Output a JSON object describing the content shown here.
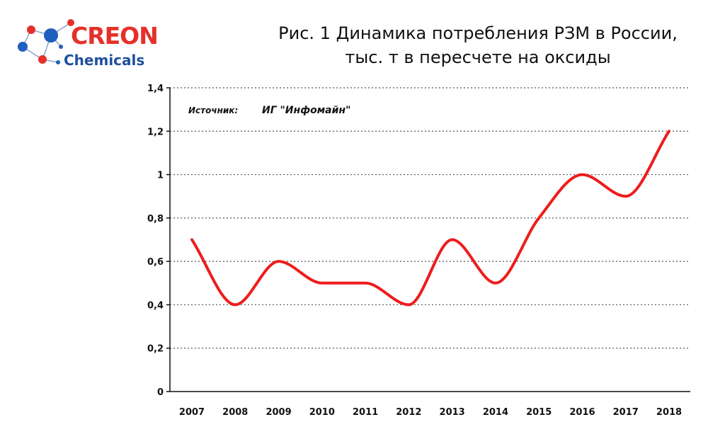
{
  "logo": {
    "word1": "CREON",
    "word2": "Chemicals"
  },
  "title_line1": "Рис. 1  Динамика потребления РЗМ в России,",
  "title_line2": "тыс. т в пересчете на оксиды",
  "source_label": "Источник:",
  "source_value": "ИГ \"Инфомайн\"",
  "colors": {
    "line": "#ee1c1c",
    "logo_red": "#e5302a",
    "logo_blue": "#1e4f9e",
    "grid": "#555555"
  },
  "chart_data": {
    "type": "line",
    "categories": [
      "2007",
      "2008",
      "2009",
      "2010",
      "2011",
      "2012",
      "2013",
      "2014",
      "2015",
      "2016",
      "2017",
      "2018"
    ],
    "series": [
      {
        "values": [
          0.7,
          0.4,
          0.6,
          0.5,
          0.5,
          0.4,
          0.7,
          0.5,
          0.8,
          1.0,
          0.9,
          1.2
        ]
      }
    ],
    "y_ticks": [
      {
        "value": 0,
        "label": "0"
      },
      {
        "value": 0.2,
        "label": "0,2"
      },
      {
        "value": 0.4,
        "label": "0,4"
      },
      {
        "value": 0.6,
        "label": "0,6"
      },
      {
        "value": 0.8,
        "label": "0,8"
      },
      {
        "value": 1.0,
        "label": "1"
      },
      {
        "value": 1.2,
        "label": "1,2"
      },
      {
        "value": 1.4,
        "label": "1,4"
      }
    ],
    "ylim": [
      0,
      1.4
    ],
    "grid": "horizontal dotted",
    "curve": "smooth"
  }
}
